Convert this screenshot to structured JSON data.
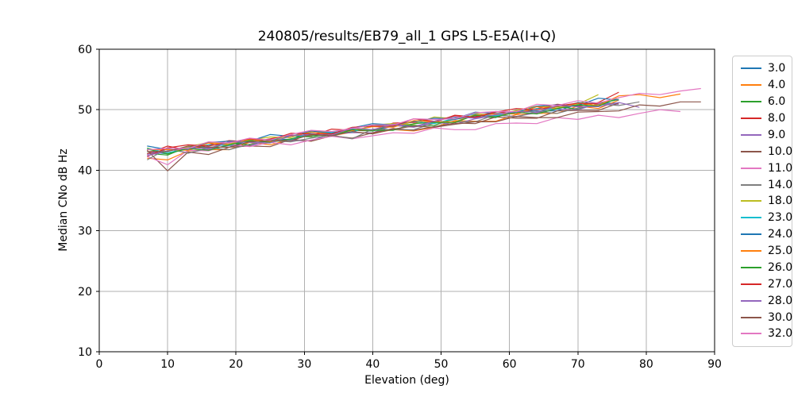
{
  "figure": {
    "title": "240805/results/EB79_all_1 GPS L5-E5A(I+Q)",
    "xlabel": "Elevation (deg)",
    "ylabel": "Median CNo dB Hz"
  },
  "chart_data": {
    "type": "line",
    "title": "240805/results/EB79_all_1 GPS L5-E5A(I+Q)",
    "xlabel": "Elevation (deg)",
    "ylabel": "Median CNo dB Hz",
    "xlim": [
      0,
      90
    ],
    "ylim": [
      10,
      60
    ],
    "xticks": [
      0,
      10,
      20,
      30,
      40,
      50,
      60,
      70,
      80,
      90
    ],
    "yticks": [
      10,
      20,
      30,
      40,
      50,
      60
    ],
    "grid": true,
    "grid_color": "#b0b0b0",
    "background": "#ffffff",
    "spine_color": "#000000",
    "legend_position": "outside-right",
    "series": [
      {
        "name": "3.0",
        "color": "#1f77b4",
        "x": [
          7,
          10,
          13,
          16,
          19,
          22,
          25,
          28,
          31,
          34,
          37,
          40,
          43,
          46,
          49,
          52,
          55,
          58,
          61,
          64,
          67,
          70,
          73,
          76
        ],
        "y": [
          43.1,
          42.7,
          43.9,
          43.8,
          43.8,
          45.0,
          45.1,
          45.1,
          46.3,
          46.0,
          46.8,
          46.5,
          47.4,
          48.0,
          47.8,
          48.4,
          49.0,
          48.9,
          49.9,
          49.8,
          49.8,
          50.9,
          51.1,
          51.1
        ]
      },
      {
        "name": "4.0",
        "color": "#ff7f0e",
        "x": [
          7,
          10,
          13,
          16,
          19,
          22,
          25,
          28,
          31,
          34,
          37,
          40,
          43,
          46,
          49,
          52,
          55,
          58,
          61,
          64,
          67,
          70,
          73,
          76
        ],
        "y": [
          42.0,
          41.7,
          43.2,
          43.4,
          43.4,
          44.6,
          44.2,
          45.1,
          44.8,
          45.7,
          46.3,
          46.1,
          46.7,
          46.5,
          47.1,
          48.2,
          48.1,
          48.1,
          49.2,
          49.4,
          49.4,
          50.6,
          50.2,
          51.6
        ]
      },
      {
        "name": "6.0",
        "color": "#2ca02c",
        "x": [
          7,
          10,
          13,
          16,
          19,
          22,
          25,
          28,
          31,
          34,
          37,
          40,
          43,
          46,
          49,
          52,
          55,
          58,
          61,
          64,
          67,
          70,
          73,
          76
        ],
        "y": [
          42.8,
          42.5,
          43.9,
          43.6,
          44.5,
          44.2,
          45.0,
          45.7,
          45.5,
          46.1,
          46.6,
          46.5,
          47.6,
          47.4,
          47.4,
          48.6,
          48.8,
          48.7,
          49.9,
          49.6,
          50.5,
          50.1,
          51.0,
          51.7
        ]
      },
      {
        "name": "8.0",
        "color": "#d62728",
        "x": [
          7,
          10,
          13,
          16,
          19,
          22,
          25,
          28,
          31,
          34,
          37,
          40,
          43,
          46,
          49,
          52,
          55,
          58,
          61,
          64,
          67,
          70,
          73,
          76
        ],
        "y": [
          42.7,
          44.0,
          43.3,
          44.2,
          44.9,
          44.7,
          45.2,
          45.8,
          45.7,
          46.8,
          46.6,
          46.6,
          47.8,
          47.9,
          47.9,
          49.1,
          48.8,
          49.7,
          49.3,
          50.2,
          50.9,
          50.6,
          51.2,
          52.9
        ]
      },
      {
        "name": "9.0",
        "color": "#9467bd",
        "x": [
          7,
          10,
          13,
          16,
          19,
          22,
          25,
          28,
          31,
          34,
          37,
          40,
          43,
          46,
          49,
          52,
          55,
          58,
          61,
          64,
          67,
          70,
          73,
          76
        ],
        "y": [
          42.6,
          43.5,
          42.9,
          43.5,
          44.1,
          44.0,
          45.0,
          44.9,
          44.9,
          46.0,
          46.2,
          46.2,
          47.4,
          47.1,
          47.9,
          47.6,
          48.5,
          49.1,
          48.9,
          49.5,
          50.1,
          50.0,
          51.0,
          50.9
        ]
      },
      {
        "name": "10.0",
        "color": "#8c564b",
        "x": [
          7,
          10,
          13,
          16,
          19,
          22,
          25,
          28,
          31,
          34,
          37,
          40,
          43,
          46,
          49,
          52,
          55,
          58,
          61,
          64,
          67,
          70,
          73,
          76
        ],
        "y": [
          43.3,
          39.9,
          43.0,
          42.6,
          43.8,
          44.0,
          43.9,
          45.1,
          44.8,
          45.7,
          45.3,
          46.2,
          46.9,
          46.6,
          47.2,
          47.8,
          47.7,
          48.8,
          48.6,
          48.6,
          49.8,
          49.9,
          49.9,
          51.1
        ]
      },
      {
        "name": "11.0",
        "color": "#e377c2",
        "x": [
          7,
          10,
          13,
          16,
          19,
          22,
          25,
          28,
          31,
          34,
          37,
          40,
          43,
          46,
          49,
          52,
          55,
          58,
          61,
          64,
          67,
          70,
          73,
          76,
          79,
          82,
          85
        ],
        "y": [
          42.3,
          40.9,
          43.3,
          43.2,
          44.3,
          43.9,
          44.6,
          44.2,
          45.0,
          45.6,
          45.2,
          45.7,
          46.2,
          46.1,
          47.0,
          46.7,
          46.7,
          47.7,
          47.8,
          47.7,
          48.7,
          48.4,
          49.1,
          48.7,
          49.4,
          50.0,
          49.7
        ]
      },
      {
        "name": "14.0",
        "color": "#7f7f7f",
        "x": [
          7,
          10,
          13,
          16,
          19,
          22,
          25,
          28,
          31,
          34,
          37,
          40,
          43,
          46,
          49,
          52,
          55,
          58,
          61,
          64,
          67,
          70,
          73,
          76,
          79
        ],
        "y": [
          41.7,
          43.6,
          42.8,
          43.7,
          43.4,
          44.3,
          44.9,
          44.7,
          45.3,
          45.8,
          45.2,
          46.8,
          46.7,
          46.7,
          47.8,
          48.0,
          48.0,
          49.2,
          48.8,
          49.7,
          49.4,
          50.3,
          50.9,
          50.7,
          51.3
        ]
      },
      {
        "name": "18.0",
        "color": "#bcbd22",
        "x": [
          7,
          10,
          13,
          16,
          19,
          22,
          25,
          28,
          31,
          34,
          37,
          40,
          43,
          46,
          49,
          52,
          55,
          58,
          61,
          64,
          67,
          70,
          73
        ],
        "y": [
          43.7,
          42.7,
          43.9,
          44.6,
          44.4,
          45.0,
          45.5,
          45.4,
          46.5,
          46.3,
          46.3,
          47.5,
          47.7,
          47.6,
          48.8,
          48.5,
          49.4,
          49.0,
          49.9,
          50.6,
          50.4,
          50.9,
          52.5
        ]
      },
      {
        "name": "23.0",
        "color": "#17becf",
        "x": [
          7,
          10,
          13,
          16,
          19,
          22,
          25,
          28,
          31,
          34,
          37,
          40,
          43,
          46,
          49,
          52,
          55,
          58,
          61,
          64,
          67,
          70,
          73
        ],
        "y": [
          43.6,
          42.9,
          43.6,
          44.2,
          44.1,
          45.2,
          45.0,
          45.0,
          46.2,
          46.3,
          46.3,
          47.5,
          47.2,
          48.1,
          47.7,
          48.6,
          49.3,
          49.0,
          49.6,
          50.2,
          50.1,
          51.2,
          51.0
        ]
      },
      {
        "name": "24.0",
        "color": "#1f77b4",
        "x": [
          7,
          10,
          13,
          16,
          19,
          22,
          25,
          28,
          31,
          34,
          37,
          40,
          43,
          46,
          49,
          52,
          55,
          58,
          61,
          64,
          67,
          70,
          73,
          76
        ],
        "y": [
          44.0,
          43.4,
          43.4,
          44.6,
          44.8,
          44.8,
          45.9,
          45.6,
          46.5,
          46.1,
          47.0,
          47.7,
          47.5,
          48.1,
          48.6,
          48.5,
          49.6,
          49.4,
          49.4,
          50.6,
          50.8,
          50.7,
          51.9,
          51.6
        ]
      },
      {
        "name": "25.0",
        "color": "#ff7f0e",
        "x": [
          7,
          10,
          13,
          16,
          19,
          22,
          25,
          28,
          31,
          34,
          37,
          40,
          43,
          46,
          49,
          52,
          55,
          58,
          61,
          64,
          67,
          70,
          73,
          76,
          79,
          82,
          85
        ],
        "y": [
          43.4,
          43.4,
          43.3,
          44.5,
          44.2,
          45.1,
          44.7,
          45.6,
          46.3,
          46.0,
          46.6,
          47.2,
          47.1,
          48.2,
          48.0,
          48.0,
          49.2,
          49.3,
          49.3,
          50.5,
          50.2,
          51.1,
          50.7,
          52.3,
          52.5,
          52.0,
          52.6
        ]
      },
      {
        "name": "26.0",
        "color": "#2ca02c",
        "x": [
          7,
          10,
          13,
          16,
          19,
          22,
          25,
          28,
          31,
          34,
          37,
          40,
          43,
          46,
          49,
          52,
          55,
          58,
          61,
          64,
          67,
          70,
          73,
          76
        ],
        "y": [
          43.5,
          42.7,
          43.6,
          43.3,
          44.2,
          44.9,
          44.6,
          45.2,
          45.8,
          45.7,
          46.7,
          46.6,
          46.6,
          47.7,
          47.9,
          47.9,
          49.1,
          48.8,
          49.6,
          49.3,
          50.2,
          50.8,
          50.6,
          52.0
        ]
      },
      {
        "name": "27.0",
        "color": "#d62728",
        "x": [
          7,
          10,
          13,
          16,
          19,
          22,
          25,
          28,
          31,
          34,
          37,
          40,
          43,
          46,
          49,
          52,
          55,
          58,
          61,
          64,
          67,
          70,
          73
        ],
        "y": [
          42.3,
          43.7,
          44.2,
          44.0,
          44.6,
          45.2,
          45.0,
          46.1,
          46.0,
          46.0,
          47.1,
          47.3,
          47.3,
          48.5,
          48.1,
          49.0,
          48.7,
          49.6,
          50.2,
          50.0,
          50.6,
          51.1,
          51.0
        ]
      },
      {
        "name": "28.0",
        "color": "#9467bd",
        "x": [
          7,
          10,
          13,
          16,
          19,
          22,
          25,
          28,
          31,
          34,
          37,
          40,
          43,
          46,
          49,
          52,
          55,
          58,
          61,
          64,
          67,
          70,
          73,
          76,
          79
        ],
        "y": [
          42.4,
          43.2,
          43.7,
          43.6,
          44.7,
          44.6,
          44.5,
          45.7,
          45.9,
          45.8,
          47.0,
          46.7,
          47.6,
          47.2,
          48.1,
          48.8,
          48.6,
          49.2,
          49.7,
          49.6,
          50.7,
          50.5,
          50.5,
          51.2,
          50.4
        ]
      },
      {
        "name": "30.0",
        "color": "#8c564b",
        "x": [
          7,
          10,
          13,
          16,
          19,
          22,
          25,
          28,
          31,
          34,
          37,
          40,
          43,
          46,
          49,
          52,
          55,
          58,
          61,
          64,
          67,
          70,
          73,
          76,
          79,
          82,
          85,
          88
        ],
        "y": [
          43.1,
          43.1,
          44.0,
          43.8,
          43.8,
          44.7,
          44.9,
          44.9,
          45.9,
          45.7,
          46.4,
          46.0,
          46.8,
          47.3,
          47.1,
          47.6,
          48.0,
          48.0,
          48.9,
          48.7,
          48.7,
          49.6,
          49.7,
          49.8,
          50.8,
          50.6,
          51.3,
          51.3
        ]
      },
      {
        "name": "32.0",
        "color": "#e377c2",
        "x": [
          7,
          10,
          13,
          16,
          19,
          22,
          25,
          28,
          31,
          34,
          37,
          40,
          43,
          46,
          49,
          52,
          55,
          58,
          61,
          64,
          67,
          70,
          73,
          76,
          79,
          82,
          85,
          88
        ],
        "y": [
          43.4,
          43.6,
          43.6,
          44.7,
          44.5,
          45.3,
          45.0,
          45.9,
          46.6,
          46.4,
          46.9,
          47.5,
          47.5,
          48.5,
          48.4,
          48.5,
          49.5,
          49.7,
          49.7,
          50.9,
          50.7,
          51.5,
          51.1,
          52.0,
          52.7,
          52.5,
          53.1,
          53.5
        ]
      }
    ]
  }
}
